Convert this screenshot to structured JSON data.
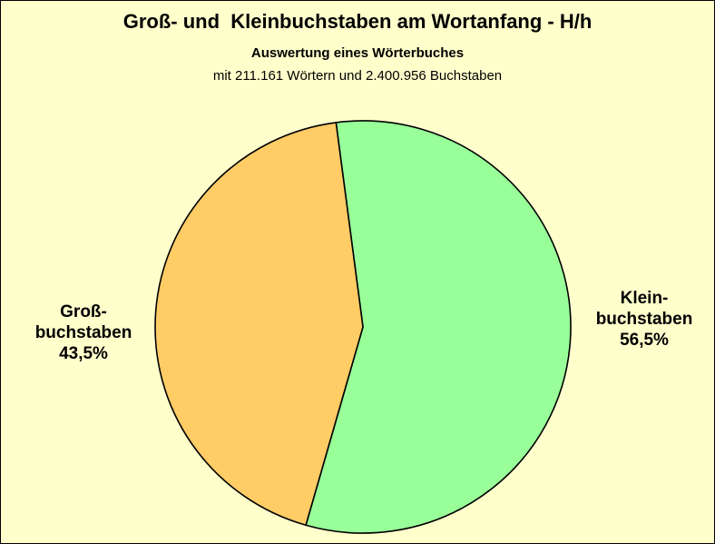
{
  "chart_data": {
    "type": "pie",
    "title": "Groß- und  Kleinbuchstaben am Wortanfang - H/h",
    "subtitle": "Auswertung eines Wörterbuches",
    "subtitle2": "mit 211.161 Wörtern und 2.400.956 Buchstaben",
    "legend": "none",
    "slices": [
      {
        "label_lines": [
          "Klein-",
          "buchstaben",
          "56,5%"
        ],
        "value": 56.5,
        "color": "#99ff99"
      },
      {
        "label_lines": [
          "Groß-",
          "buchstaben",
          "43,5%"
        ],
        "value": 43.5,
        "color": "#ffcc66"
      }
    ]
  }
}
